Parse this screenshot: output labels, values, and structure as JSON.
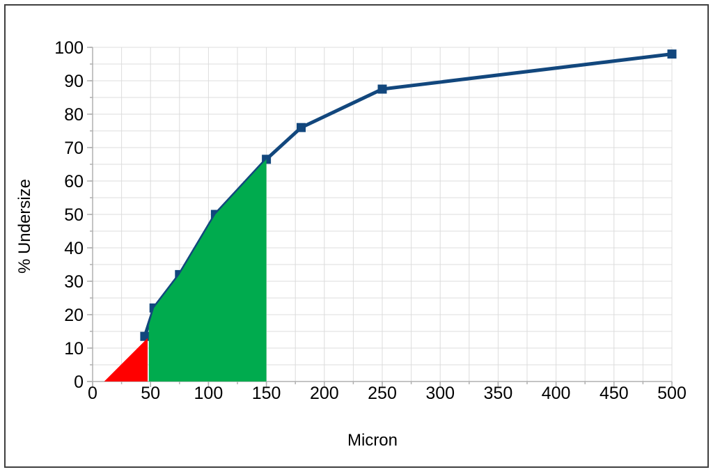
{
  "chart_data": {
    "type": "line",
    "title": "",
    "xlabel": "Micron",
    "ylabel": "% Undersize",
    "x": [
      45,
      53,
      75,
      106,
      150,
      180,
      250,
      500
    ],
    "series": [
      {
        "name": "% Undersize",
        "values": [
          13.5,
          22,
          32,
          50,
          66.5,
          76,
          87.5,
          98
        ]
      }
    ],
    "xlim": [
      0,
      500
    ],
    "ylim": [
      0,
      100
    ],
    "x_ticks": [
      0,
      50,
      100,
      150,
      200,
      250,
      300,
      350,
      400,
      450,
      500
    ],
    "y_ticks": [
      0,
      10,
      20,
      30,
      40,
      50,
      60,
      70,
      80,
      90,
      100
    ],
    "x_minor_step": 25,
    "y_minor_step": 5,
    "grid": true,
    "legend": "none",
    "marker": "square",
    "regions": [
      {
        "name": "red-undersize-triangle",
        "color": "#FF0000",
        "points": [
          [
            10,
            0
          ],
          [
            47.5,
            13
          ],
          [
            47.5,
            0
          ]
        ]
      },
      {
        "name": "green-50-150-area",
        "color": "#00AB4E",
        "points": [
          [
            48.5,
            0
          ],
          [
            48.5,
            16.8
          ],
          [
            53,
            22
          ],
          [
            75,
            32
          ],
          [
            106,
            50
          ],
          [
            150,
            66.5
          ],
          [
            150,
            0
          ]
        ]
      }
    ],
    "colors": {
      "line": "#12477D",
      "marker": "#12477D",
      "grid": "#DCDCDC",
      "axis": "#B0B0B0",
      "frame": "#3F3F3F",
      "background": "#FFFFFF",
      "red_region": "#FF0000",
      "green_region": "#00AB4E"
    }
  }
}
